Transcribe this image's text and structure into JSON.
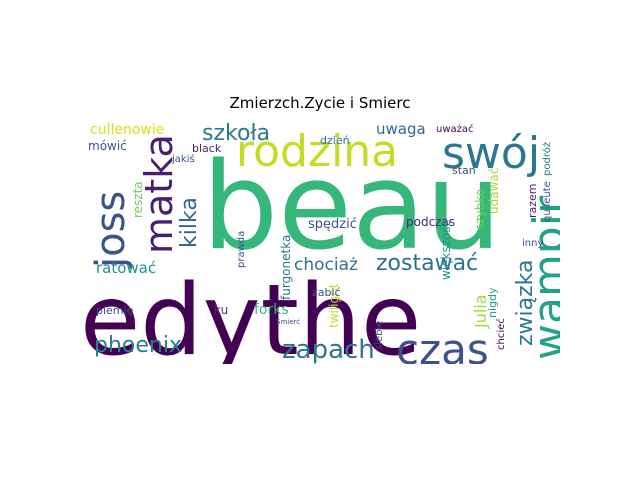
{
  "title": "Zmierzch.Zycie i Smierc",
  "words": {
    "beau": "beau",
    "edythe": "edythe",
    "rodzina": "rodzina",
    "swoj": "swój",
    "wampir": "wampir",
    "joss": "joss",
    "matka": "matka",
    "czas": "czas",
    "zapach": "zapach",
    "phoenix": "phoenix",
    "zostawac": "zostawać",
    "szkola": "szkoła",
    "kilka": "kilka",
    "cullenowie": "cullenowie",
    "uwaga": "uwaga",
    "zwiazka": "związka",
    "chociaz": "chociaż",
    "ratowac": "ratować",
    "julia": "Julia",
    "spedzic": "spędzić",
    "furgonetka": "furgonetka",
    "podczas": "podczas",
    "forks": "forks",
    "dzien": "dzień",
    "mowic": "mówić",
    "reszta": "reszta",
    "twilight": "twilight",
    "udawac": "udawać",
    "szybko": "szybko",
    "wiekszosc": "większość",
    "razem": "razem",
    "nigdy": "nigdy",
    "inny": "inny",
    "stan": "stan",
    "uwazac": "uważać",
    "black": "black",
    "jakis": "jakiś",
    "ku": "ku",
    "prawda": "prawda",
    "zabic": "zabić",
    "plemie": "plemię",
    "siebie": "siebie",
    "chciec": "chcieć",
    "quileute": "quileute",
    "podroz": "podróż",
    "smierc": "Śmierć"
  }
}
